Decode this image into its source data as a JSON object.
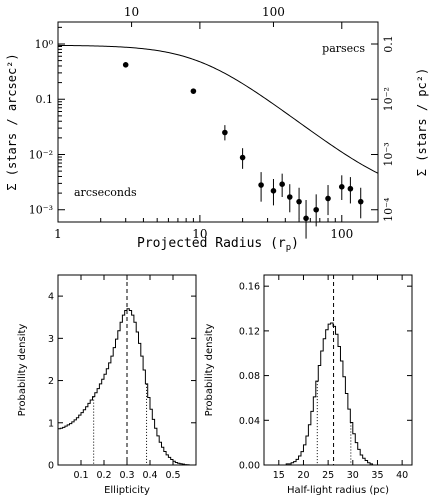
{
  "chart_data": [
    {
      "type": "scatter",
      "panel": "surface-density-profile",
      "xscale": "log",
      "yscale": "log",
      "xlabel": "Projected Radius (r",
      "xlabel_sub": "p",
      "xlabel_close": ")",
      "ylabel_left": "Σ (stars / arcsec²)",
      "ylabel_right": "Σ (stars / pc²)",
      "label_top_right": "parsecs",
      "label_bottom_left": "arcseconds",
      "xlim": [
        1,
        180
      ],
      "ylim": [
        0.0006,
        2.5
      ],
      "x_ticks": [
        1,
        10,
        100
      ],
      "x_tick_labels": [
        "1",
        "10",
        "100"
      ],
      "y_ticks": [
        1,
        0.1,
        0.01,
        0.001
      ],
      "y_tick_labels": [
        "10⁰",
        "0.1",
        "10⁻²",
        "10⁻³"
      ],
      "top_axis_ticks": [
        10,
        100
      ],
      "top_axis_positions": [
        3.3,
        33
      ],
      "top_axis_labels": [
        "10",
        "100"
      ],
      "right_axis_labels": [
        "0.1",
        "10⁻²",
        "10⁻³",
        "10⁻⁴"
      ],
      "right_axis_positions": [
        1,
        0.1,
        0.01,
        0.001
      ],
      "points": [
        {
          "x": 3.0,
          "y": 0.42,
          "ylo": 0.42,
          "yhi": 0.42
        },
        {
          "x": 9.0,
          "y": 0.14,
          "ylo": 0.14,
          "yhi": 0.14
        },
        {
          "x": 15.0,
          "y": 0.025,
          "ylo": 0.018,
          "yhi": 0.034
        },
        {
          "x": 20.0,
          "y": 0.0088,
          "ylo": 0.0055,
          "yhi": 0.013
        },
        {
          "x": 27.0,
          "y": 0.0028,
          "ylo": 0.0014,
          "yhi": 0.0048
        },
        {
          "x": 33.0,
          "y": 0.0022,
          "ylo": 0.0012,
          "yhi": 0.0036
        },
        {
          "x": 38.0,
          "y": 0.0029,
          "ylo": 0.0017,
          "yhi": 0.0045
        },
        {
          "x": 43.0,
          "y": 0.0017,
          "ylo": 0.0009,
          "yhi": 0.0029
        },
        {
          "x": 50.0,
          "y": 0.0014,
          "ylo": 0.0007,
          "yhi": 0.0025
        },
        {
          "x": 56.0,
          "y": 0.0007,
          "ylo": 0.0003,
          "yhi": 0.0015
        },
        {
          "x": 66.0,
          "y": 0.001,
          "ylo": 0.0005,
          "yhi": 0.0019
        },
        {
          "x": 80.0,
          "y": 0.0016,
          "ylo": 0.0008,
          "yhi": 0.0028
        },
        {
          "x": 100.0,
          "y": 0.0026,
          "ylo": 0.0015,
          "yhi": 0.0042
        },
        {
          "x": 115.0,
          "y": 0.0024,
          "ylo": 0.0013,
          "yhi": 0.0039
        },
        {
          "x": 136.0,
          "y": 0.0014,
          "ylo": 0.0007,
          "yhi": 0.0025
        }
      ],
      "model_curve": {
        "central_density": 0.95,
        "scale_radius": 10.0,
        "background": 0.00165
      }
    },
    {
      "type": "area",
      "panel": "ellipticity-posterior",
      "style": "step",
      "xlabel": "Ellipticity",
      "ylabel": "Probability density",
      "xlim": [
        0.0,
        0.6
      ],
      "ylim": [
        0,
        4.5
      ],
      "x_ticks": [
        0.1,
        0.2,
        0.3,
        0.4,
        0.5
      ],
      "x_tick_labels": [
        "0.1",
        "0.2",
        "0.3",
        "0.4",
        "0.5"
      ],
      "y_ticks": [
        0,
        1,
        2,
        3,
        4
      ],
      "y_tick_labels": [
        "0",
        "1",
        "2",
        "3",
        "4"
      ],
      "median": 0.3,
      "lower_bound": 0.155,
      "upper_bound": 0.385,
      "bin_edges_start": 0.0,
      "bin_width": 0.01,
      "values": [
        0.86,
        0.87,
        0.89,
        0.92,
        0.95,
        0.98,
        1.02,
        1.07,
        1.12,
        1.18,
        1.24,
        1.31,
        1.38,
        1.46,
        1.54,
        1.62,
        1.71,
        1.81,
        1.92,
        2.03,
        2.15,
        2.28,
        2.42,
        2.58,
        2.78,
        2.98,
        3.18,
        3.38,
        3.55,
        3.66,
        3.7,
        3.66,
        3.55,
        3.38,
        3.15,
        2.88,
        2.58,
        2.25,
        1.92,
        1.6,
        1.32,
        1.08,
        0.87,
        0.69,
        0.54,
        0.42,
        0.32,
        0.24,
        0.18,
        0.13,
        0.09,
        0.06,
        0.04,
        0.03,
        0.02,
        0.01,
        0.005,
        0.0,
        0.0,
        0.0
      ]
    },
    {
      "type": "area",
      "panel": "half-light-radius-posterior",
      "style": "step",
      "xlabel": "Half-light radius (pc)",
      "ylabel": "Probability density",
      "xlim": [
        12,
        42
      ],
      "ylim": [
        0,
        0.17
      ],
      "x_ticks": [
        15,
        20,
        25,
        30,
        35,
        40
      ],
      "x_tick_labels": [
        "15",
        "20",
        "25",
        "30",
        "35",
        "40"
      ],
      "y_ticks": [
        0.0,
        0.04,
        0.08,
        0.12,
        0.16
      ],
      "y_tick_labels": [
        "0.00",
        "0.04",
        "0.08",
        "0.12",
        "0.16"
      ],
      "median": 26.1,
      "lower_bound": 22.8,
      "upper_bound": 29.6,
      "bin_edges_start": 15.0,
      "bin_width": 0.5,
      "values": [
        0.0,
        0.0,
        0.0,
        0.001,
        0.001,
        0.002,
        0.003,
        0.005,
        0.008,
        0.012,
        0.018,
        0.026,
        0.036,
        0.048,
        0.061,
        0.075,
        0.089,
        0.102,
        0.113,
        0.121,
        0.126,
        0.127,
        0.124,
        0.117,
        0.106,
        0.093,
        0.079,
        0.064,
        0.05,
        0.038,
        0.028,
        0.02,
        0.014,
        0.009,
        0.006,
        0.004,
        0.002,
        0.001,
        0.0,
        0.0,
        0.0,
        0.0,
        0.0,
        0.0,
        0.0,
        0.0,
        0.0,
        0.0,
        0.0,
        0.0
      ]
    }
  ]
}
